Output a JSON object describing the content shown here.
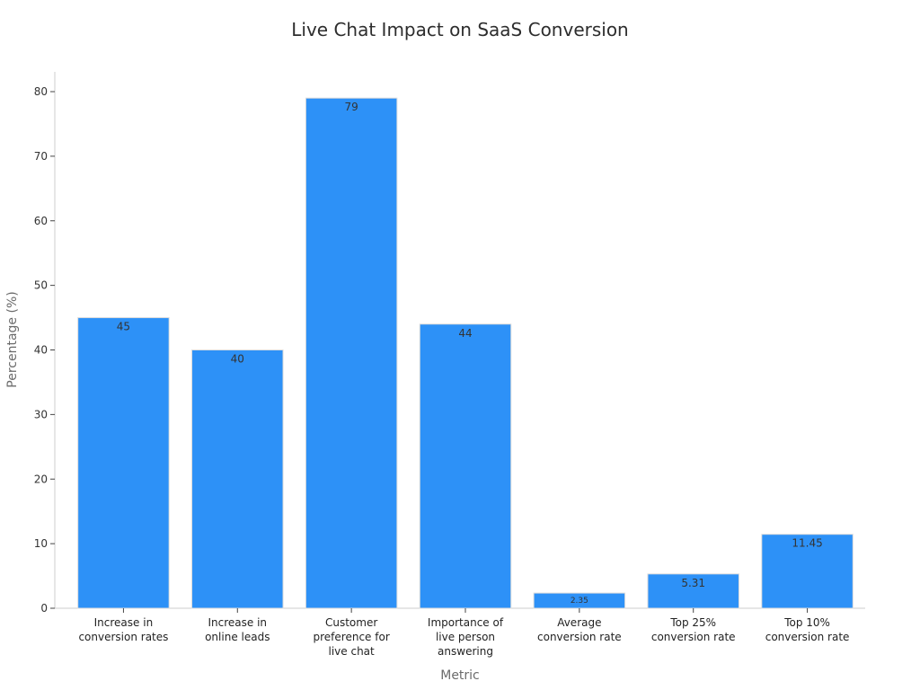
{
  "chart_data": {
    "type": "bar",
    "title": "Live Chat Impact on SaaS Conversion",
    "xlabel": "Metric",
    "ylabel": "Percentage (%)",
    "ylim": [
      0,
      83
    ],
    "yticks": [
      0,
      10,
      20,
      30,
      40,
      50,
      60,
      70,
      80
    ],
    "grid": false,
    "bar_color": "#2d91f7",
    "categories": [
      [
        "Increase in",
        "conversion rates"
      ],
      [
        "Increase in",
        "online leads"
      ],
      [
        "Customer",
        "preference for",
        "live chat"
      ],
      [
        "Importance of",
        "live person",
        "answering"
      ],
      [
        "Average",
        "conversion rate"
      ],
      [
        "Top 25%",
        "conversion rate"
      ],
      [
        "Top 10%",
        "conversion rate"
      ]
    ],
    "values": [
      45,
      40,
      79,
      44,
      2.35,
      5.31,
      11.45
    ],
    "value_labels": [
      "45",
      "40",
      "79",
      "44",
      "2.35",
      "5.31",
      "11.45"
    ]
  }
}
